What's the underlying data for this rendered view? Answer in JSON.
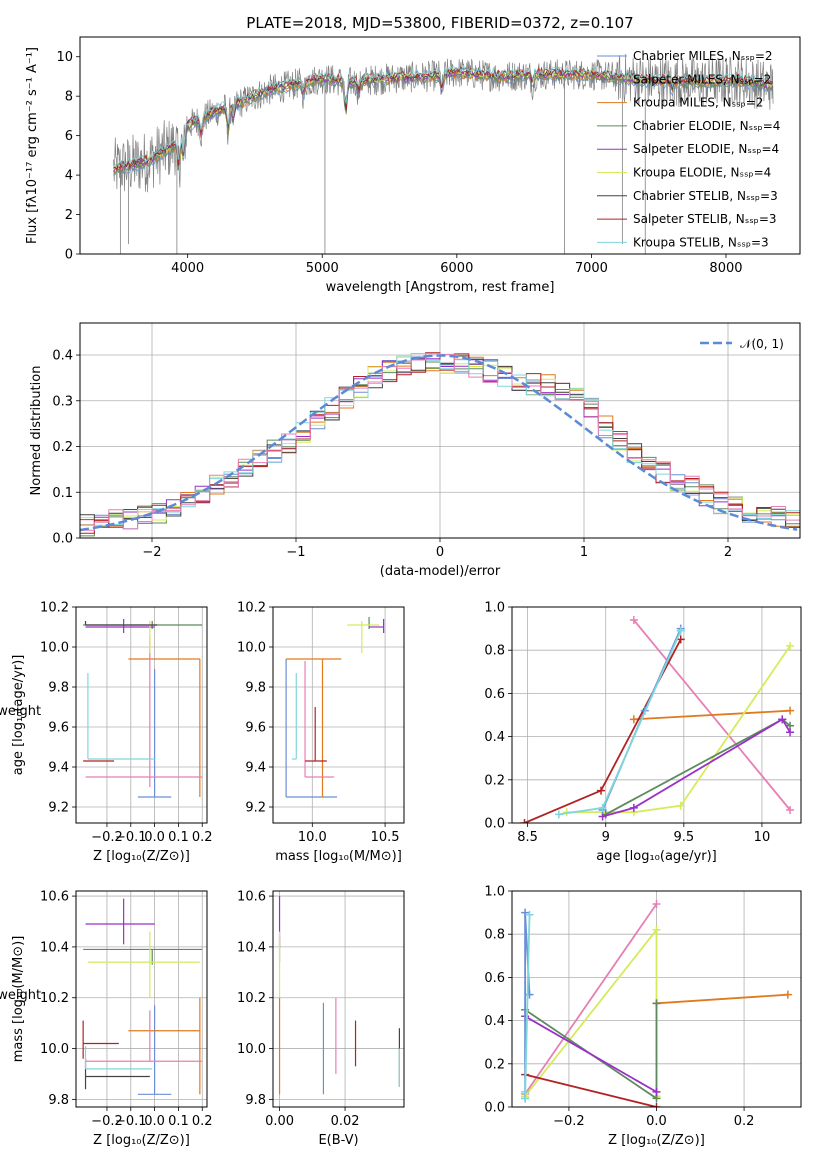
{
  "figure": {
    "title": "PLATE=2018, MJD=53800, FIBERID=0372, z=0.107"
  },
  "chart_data": [
    {
      "id": "spectrum",
      "type": "line",
      "xlabel": "wavelength [Angstrom, rest frame]",
      "ylabel": "Flux [fλ10⁻¹⁷ erg cm⁻² s⁻¹ A⁻¹]",
      "xlim": [
        3200,
        8550
      ],
      "ylim": [
        0,
        11
      ],
      "xticks": [
        4000,
        5000,
        6000,
        7000,
        8000
      ],
      "yticks": [
        0,
        2,
        4,
        6,
        8,
        10
      ],
      "grid": false,
      "legend_position": "right",
      "data_series": {
        "name": "",
        "color": "#808080"
      },
      "series": [
        {
          "name": "Chabrier MILES, Nₛₛₚ=2",
          "color": "#6a8fd6"
        },
        {
          "name": "Salpeter MILES, Nₛₛₚ=2",
          "color": "#5d8a5e"
        },
        {
          "name": "Kroupa MILES, Nₛₛₚ=2",
          "color": "#e07a1f"
        },
        {
          "name": "Chabrier ELODIE, Nₛₛₚ=4",
          "color": "#5d8a5e"
        },
        {
          "name": "Salpeter ELODIE, Nₛₛₚ=4",
          "color": "#9b30c8"
        },
        {
          "name": "Kroupa ELODIE, Nₛₛₚ=4",
          "color": "#d4ec5a"
        },
        {
          "name": "Chabrier STELIB, Nₛₛₚ=3",
          "color": "#444444"
        },
        {
          "name": "Salpeter STELIB, Nₛₛₚ=3",
          "color": "#b22222"
        },
        {
          "name": "Kroupa STELIB, Nₛₛₚ=3",
          "color": "#7fd6dc"
        }
      ],
      "continuum": {
        "x": [
          3450,
          3700,
          3900,
          4000,
          4200,
          4400,
          4600,
          4800,
          5000,
          5200,
          5500,
          5800,
          6000,
          6300,
          6600,
          7000,
          7400,
          7800,
          8100,
          8350
        ],
        "y": [
          4.3,
          4.7,
          5.5,
          6.5,
          7.2,
          7.7,
          8.3,
          8.6,
          8.9,
          8.7,
          8.9,
          9.0,
          9.2,
          9.0,
          9.1,
          9.1,
          8.8,
          8.7,
          8.8,
          8.5
        ]
      }
    },
    {
      "id": "residuals",
      "type": "bar",
      "xlabel": "(data-model)/error",
      "ylabel": "Normed distribution",
      "xlim": [
        -2.5,
        2.5
      ],
      "ylim": [
        0,
        0.47
      ],
      "xticks": [
        -2,
        -1,
        0,
        1,
        2
      ],
      "yticks": [
        0.0,
        0.1,
        0.2,
        0.3,
        0.4
      ],
      "grid": true,
      "legend_position": "top-right",
      "legend": "𝒩(0, 1)",
      "gaussian_color": "#5b8bd6",
      "bin_width": 0.1,
      "profile": {
        "x": [
          -2.5,
          -2.0,
          -1.5,
          -1.0,
          -0.8,
          -0.6,
          -0.4,
          -0.2,
          0.0,
          0.2,
          0.4,
          0.6,
          0.8,
          1.0,
          1.2,
          1.5,
          2.0,
          2.5
        ],
        "y": [
          0.025,
          0.05,
          0.12,
          0.22,
          0.27,
          0.32,
          0.36,
          0.38,
          0.385,
          0.38,
          0.36,
          0.34,
          0.33,
          0.31,
          0.22,
          0.15,
          0.07,
          0.035
        ]
      },
      "series_colors": [
        "#6a8fd6",
        "#5d8a5e",
        "#e07a1f",
        "#9b30c8",
        "#d4ec5a",
        "#444444",
        "#b22222",
        "#7fd6dc",
        "#e77fb5"
      ]
    },
    {
      "id": "z-age",
      "type": "scatter",
      "xlabel": "Z [log₁₀(Z/Z⊙)]",
      "ylabel": "age  [log₁₀(age/yr)]",
      "xlim": [
        -0.33,
        0.22
      ],
      "ylim": [
        9.12,
        10.2
      ],
      "xticks": [
        -0.2,
        -0.1,
        0.0,
        0.1,
        0.2
      ],
      "xticklabels": [
        "−0.2",
        "−0.1",
        "0.0",
        "0.1",
        "0.2"
      ],
      "yticks": [
        9.2,
        9.4,
        9.6,
        9.8,
        10.0,
        10.2
      ],
      "grid": true,
      "points": [
        {
          "color": "#6a8fd6",
          "x": 0.0,
          "xerr": [
            0.07,
            0.07
          ],
          "y": 9.25,
          "yerr": [
            0.0,
            0.64
          ]
        },
        {
          "color": "#e07a1f",
          "x": 0.19,
          "xerr": [
            0.3,
            0.0
          ],
          "y": 9.94,
          "yerr": [
            0.69,
            0.0
          ]
        },
        {
          "color": "#e77fb5",
          "x": -0.02,
          "xerr": [
            0.27,
            0.22
          ],
          "y": 9.35,
          "yerr": [
            0.05,
            0.7
          ]
        },
        {
          "color": "#5d8a5e",
          "x": -0.01,
          "xerr": [
            0.29,
            0.21
          ],
          "y": 10.11,
          "yerr": [
            0.02,
            0.02
          ]
        },
        {
          "color": "#9b30c8",
          "x": -0.13,
          "xerr": [
            0.16,
            0.13
          ],
          "y": 10.1,
          "yerr": [
            0.03,
            0.04
          ]
        },
        {
          "color": "#d4ec5a",
          "x": -0.02,
          "xerr": [
            0.0,
            0.0
          ],
          "y": 10.06,
          "yerr": [
            0.09,
            0.07
          ]
        },
        {
          "color": "#444444",
          "x": -0.29,
          "xerr": [
            0.0,
            0.3
          ],
          "y": 10.11,
          "yerr": [
            0.0,
            0.02
          ]
        },
        {
          "color": "#b22222",
          "x": -0.25,
          "xerr": [
            0.05,
            0.08
          ],
          "y": 9.43,
          "yerr": [
            0.0,
            0.0
          ]
        },
        {
          "color": "#7fd6dc",
          "x": -0.28,
          "xerr": [
            0.0,
            0.28
          ],
          "y": 9.44,
          "yerr": [
            0.0,
            0.43
          ]
        }
      ]
    },
    {
      "id": "mass-age",
      "type": "scatter",
      "xlabel": "mass [log₁₀(M/M⊙)]",
      "ylabel": "",
      "xlim": [
        9.73,
        10.63
      ],
      "ylim": [
        9.12,
        10.2
      ],
      "xticks": [
        10.0,
        10.5
      ],
      "xticklabels": [
        "10.0",
        "10.5"
      ],
      "yticks": [
        9.2,
        9.4,
        9.6,
        9.8,
        10.0,
        10.2
      ],
      "grid": true,
      "points": [
        {
          "color": "#6a8fd6",
          "x": 9.82,
          "xerr": [
            0.0,
            0.35
          ],
          "y": 9.25,
          "yerr": [
            0.0,
            0.69
          ]
        },
        {
          "color": "#e07a1f",
          "x": 10.07,
          "xerr": [
            0.25,
            0.13
          ],
          "y": 9.94,
          "yerr": [
            0.69,
            0.0
          ]
        },
        {
          "color": "#e77fb5",
          "x": 9.95,
          "xerr": [
            0.0,
            0.2
          ],
          "y": 9.35,
          "yerr": [
            0.0,
            0.58
          ]
        },
        {
          "color": "#5d8a5e",
          "x": 10.39,
          "xerr": [
            0.0,
            0.0
          ],
          "y": 10.11,
          "yerr": [
            0.02,
            0.04
          ]
        },
        {
          "color": "#9b30c8",
          "x": 10.49,
          "xerr": [
            0.1,
            0.0
          ],
          "y": 10.1,
          "yerr": [
            0.03,
            0.04
          ]
        },
        {
          "color": "#d4ec5a",
          "x": 10.34,
          "xerr": [
            0.1,
            0.12
          ],
          "y": 10.11,
          "yerr": [
            0.14,
            0.02
          ]
        },
        {
          "color": "#444444",
          "x": 10.39,
          "xerr": [
            0.0,
            0.0
          ],
          "y": 10.11,
          "yerr": [
            0.0,
            0.0
          ]
        },
        {
          "color": "#b22222",
          "x": 10.02,
          "xerr": [
            0.07,
            0.08
          ],
          "y": 9.43,
          "yerr": [
            0.0,
            0.27
          ]
        },
        {
          "color": "#7fd6dc",
          "x": 9.89,
          "xerr": [
            0.03,
            0.0
          ],
          "y": 9.44,
          "yerr": [
            0.0,
            0.43
          ]
        }
      ]
    },
    {
      "id": "age-weight",
      "type": "line",
      "xlabel": "age  [log₁₀(age/yr)]",
      "ylabel": "mass weight",
      "xlim": [
        8.4,
        10.25
      ],
      "ylim": [
        0,
        1
      ],
      "xticks": [
        8.5,
        9.0,
        9.5,
        10.0
      ],
      "yticks": [
        0.0,
        0.2,
        0.4,
        0.6,
        0.8,
        1.0
      ],
      "grid": true,
      "series": [
        {
          "color": "#e77fb5",
          "x": [
            9.18,
            10.18
          ],
          "y": [
            0.94,
            0.06
          ]
        },
        {
          "color": "#e07a1f",
          "x": [
            9.18,
            10.18
          ],
          "y": [
            0.48,
            0.52
          ]
        },
        {
          "color": "#d4ec5a",
          "x": [
            8.75,
            9.18,
            9.48,
            10.18
          ],
          "y": [
            0.05,
            0.05,
            0.08,
            0.82
          ]
        },
        {
          "color": "#5d8a5e",
          "x": [
            9.0,
            10.13,
            10.18
          ],
          "y": [
            0.04,
            0.48,
            0.45
          ]
        },
        {
          "color": "#9b30c8",
          "x": [
            8.98,
            9.18,
            10.13,
            10.18
          ],
          "y": [
            0.03,
            0.07,
            0.48,
            0.42
          ]
        },
        {
          "color": "#b22222",
          "x": [
            8.48,
            8.97,
            9.48
          ],
          "y": [
            0.0,
            0.15,
            0.85
          ]
        },
        {
          "color": "#6a8fd6",
          "x": [
            8.98,
            9.25,
            9.48
          ],
          "y": [
            0.06,
            0.52,
            0.9
          ]
        },
        {
          "color": "#7fd6dc",
          "x": [
            8.7,
            8.98,
            9.48
          ],
          "y": [
            0.04,
            0.07,
            0.89
          ]
        }
      ]
    },
    {
      "id": "z-mass",
      "type": "scatter",
      "xlabel": "Z [log₁₀(Z/Z⊙)]",
      "ylabel": "mass [log₁₀(M/M⊙)]",
      "xlim": [
        -0.33,
        0.22
      ],
      "ylim": [
        9.77,
        10.62
      ],
      "xticks": [
        -0.2,
        -0.1,
        0.0,
        0.1,
        0.2
      ],
      "xticklabels": [
        "−0.2",
        "−0.1",
        "0.0",
        "0.1",
        "0.2"
      ],
      "yticks": [
        9.8,
        10.0,
        10.2,
        10.4,
        10.6
      ],
      "grid": true,
      "points": [
        {
          "color": "#6a8fd6",
          "x": 0.0,
          "xerr": [
            0.07,
            0.07
          ],
          "y": 9.82,
          "yerr": [
            0.0,
            0.35
          ]
        },
        {
          "color": "#e07a1f",
          "x": 0.19,
          "xerr": [
            0.3,
            0.0
          ],
          "y": 10.07,
          "yerr": [
            0.25,
            0.13
          ]
        },
        {
          "color": "#e77fb5",
          "x": -0.02,
          "xerr": [
            0.27,
            0.22
          ],
          "y": 9.95,
          "yerr": [
            0.0,
            0.2
          ]
        },
        {
          "color": "#5d8a5e",
          "x": -0.01,
          "xerr": [
            0.29,
            0.21
          ],
          "y": 10.39,
          "yerr": [
            0.06,
            0.0
          ]
        },
        {
          "color": "#9b30c8",
          "x": -0.13,
          "xerr": [
            0.16,
            0.13
          ],
          "y": 10.49,
          "yerr": [
            0.08,
            0.1
          ]
        },
        {
          "color": "#d4ec5a",
          "x": -0.02,
          "xerr": [
            0.26,
            0.21
          ],
          "y": 10.34,
          "yerr": [
            0.14,
            0.12
          ]
        },
        {
          "color": "#444444",
          "x": -0.29,
          "xerr": [
            0.0,
            0.27
          ],
          "y": 9.89,
          "yerr": [
            0.05,
            0.07
          ]
        },
        {
          "color": "#b22222",
          "x": -0.3,
          "xerr": [
            0.0,
            0.15
          ],
          "y": 10.02,
          "yerr": [
            0.06,
            0.09
          ]
        },
        {
          "color": "#7fd6dc",
          "x": -0.29,
          "xerr": [
            0.0,
            0.28
          ],
          "y": 9.92,
          "yerr": [
            0.0,
            0.09
          ]
        }
      ]
    },
    {
      "id": "ebv-mass",
      "type": "scatter",
      "xlabel": "E(B-V)",
      "ylabel": "",
      "xlim": [
        -0.002,
        0.038
      ],
      "ylim": [
        9.77,
        10.62
      ],
      "xticks": [
        0.0,
        0.02
      ],
      "xticklabels": [
        "0.00",
        "0.02"
      ],
      "yticks": [
        9.8,
        10.0,
        10.2,
        10.4,
        10.6
      ],
      "grid": true,
      "points": [
        {
          "color": "#6a8fd6",
          "x": 0.0134,
          "y": 9.95,
          "yerr": [
            0.13,
            0.23
          ]
        },
        {
          "color": "#e07a1f",
          "x": 0.0,
          "y": 10.05,
          "yerr": [
            0.23,
            0.15
          ]
        },
        {
          "color": "#e77fb5",
          "x": 0.0172,
          "y": 10.05,
          "yerr": [
            0.15,
            0.15
          ]
        },
        {
          "color": "#5d8a5e",
          "x": 0.0,
          "y": 10.39,
          "yerr": [
            0.05,
            0.05
          ]
        },
        {
          "color": "#9b30c8",
          "x": 0.0,
          "y": 10.5,
          "yerr": [
            0.1,
            0.1
          ]
        },
        {
          "color": "#d4ec5a",
          "x": 0.0,
          "y": 10.34,
          "yerr": [
            0.14,
            0.12
          ]
        },
        {
          "color": "#444444",
          "x": 0.0366,
          "y": 9.93,
          "yerr": [
            0.08,
            0.15
          ]
        },
        {
          "color": "#b22222",
          "x": 0.0232,
          "y": 10.02,
          "yerr": [
            0.09,
            0.09
          ]
        },
        {
          "color": "#7fd6dc",
          "x": 0.0366,
          "y": 9.9,
          "yerr": [
            0.05,
            0.1
          ]
        }
      ]
    },
    {
      "id": "z-weight",
      "type": "line",
      "xlabel": "Z [log₁₀(Z/Z⊙)]",
      "ylabel": "mass weight",
      "xlim": [
        -0.33,
        0.33
      ],
      "ylim": [
        0,
        1
      ],
      "xticks": [
        -0.2,
        0.0,
        0.2
      ],
      "xticklabels": [
        "−0.2",
        "0.0",
        "0.2"
      ],
      "yticks": [
        0.0,
        0.2,
        0.4,
        0.6,
        0.8,
        1.0
      ],
      "grid": true,
      "series": [
        {
          "color": "#e77fb5",
          "x": [
            -0.3,
            0.0
          ],
          "y": [
            0.06,
            0.94
          ]
        },
        {
          "color": "#d4ec5a",
          "x": [
            -0.3,
            0.0,
            0.0
          ],
          "y": [
            0.05,
            0.82,
            0.05
          ]
        },
        {
          "color": "#e07a1f",
          "x": [
            0.0,
            0.3
          ],
          "y": [
            0.48,
            0.52
          ]
        },
        {
          "color": "#5d8a5e",
          "x": [
            -0.3,
            0.0,
            0.0
          ],
          "y": [
            0.45,
            0.04,
            0.48
          ]
        },
        {
          "color": "#9b30c8",
          "x": [
            -0.3,
            0.0
          ],
          "y": [
            0.42,
            0.07
          ]
        },
        {
          "color": "#b22222",
          "x": [
            -0.3,
            0.0
          ],
          "y": [
            0.15,
            0.0
          ]
        },
        {
          "color": "#6a8fd6",
          "x": [
            -0.3,
            -0.3,
            -0.29
          ],
          "y": [
            0.04,
            0.9,
            0.52
          ]
        },
        {
          "color": "#7fd6dc",
          "x": [
            -0.3,
            -0.29,
            -0.3
          ],
          "y": [
            0.04,
            0.89,
            0.07
          ]
        }
      ]
    }
  ]
}
